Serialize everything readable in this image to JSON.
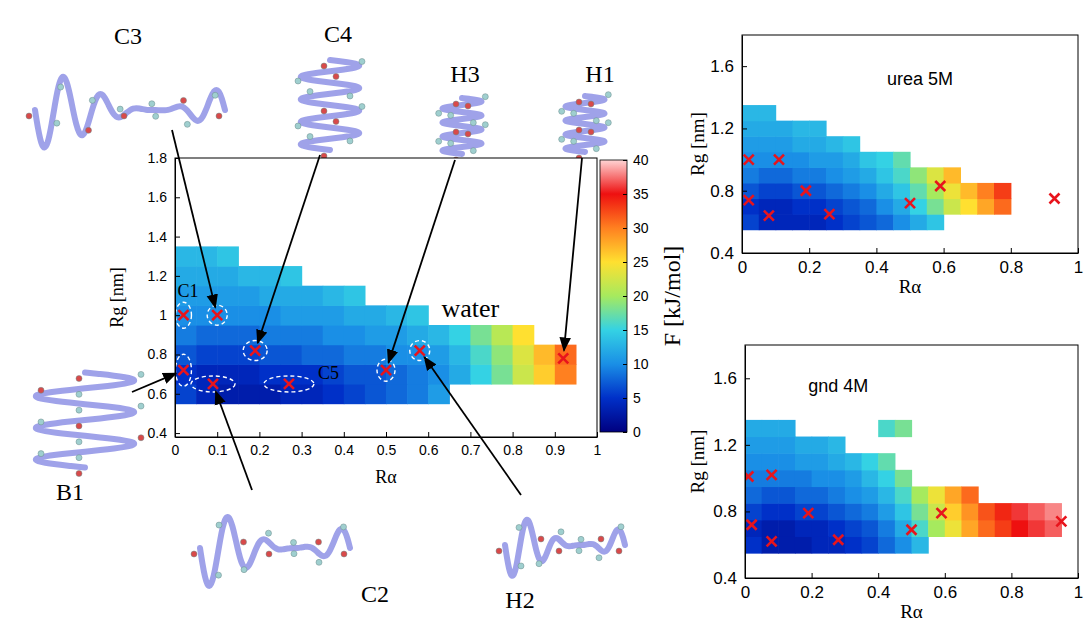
{
  "chart_data": [
    {
      "type": "heatmap",
      "title": "water",
      "x_label": "Rα",
      "y_label": "Rg [nm]",
      "xlim": [
        0,
        1
      ],
      "ylim": [
        0.38,
        1.8
      ],
      "xticks": [
        0,
        0.1,
        0.2,
        0.3,
        0.4,
        0.5,
        0.6,
        0.7,
        0.8,
        0.9,
        1
      ],
      "yticks": [
        0.4,
        0.6,
        0.8,
        1,
        1.2,
        1.4,
        1.6,
        1.8
      ],
      "x_bins": [
        0,
        0.05,
        0.1,
        0.15,
        0.2,
        0.25,
        0.3,
        0.35,
        0.4,
        0.45,
        0.5,
        0.55,
        0.6,
        0.65,
        0.7,
        0.75,
        0.8,
        0.85,
        0.9,
        0.95,
        1
      ],
      "y_bins": [
        0.55,
        0.65,
        0.75,
        0.85,
        0.95,
        1.05,
        1.15,
        1.25,
        1.35
      ],
      "values": [
        [
          6,
          4,
          3,
          3,
          3,
          4,
          4,
          5,
          6,
          7,
          8,
          9,
          11,
          null,
          null,
          null,
          null,
          null,
          null,
          null
        ],
        [
          5,
          4,
          4,
          4,
          5,
          5,
          5,
          6,
          7,
          7,
          8,
          9,
          10,
          12,
          15,
          18,
          22,
          26,
          30,
          null
        ],
        [
          7,
          6,
          6,
          6,
          7,
          7,
          8,
          8,
          9,
          9,
          10,
          10,
          11,
          13,
          16,
          19,
          23,
          27,
          31,
          null
        ],
        [
          9,
          8,
          8,
          8,
          9,
          9,
          9,
          10,
          10,
          11,
          11,
          12,
          13,
          15,
          18,
          21,
          25,
          null,
          null,
          null
        ],
        [
          10,
          10,
          10,
          10,
          10,
          11,
          11,
          11,
          12,
          12,
          13,
          14,
          null,
          null,
          null,
          null,
          null,
          null,
          null,
          null
        ],
        [
          11,
          11,
          11,
          11,
          12,
          12,
          12,
          13,
          14,
          null,
          null,
          null,
          null,
          null,
          null,
          null,
          null,
          null,
          null,
          null
        ],
        [
          12,
          12,
          12,
          13,
          13,
          14,
          null,
          null,
          null,
          null,
          null,
          null,
          null,
          null,
          null,
          null,
          null,
          null,
          null,
          null
        ],
        [
          13,
          13,
          14,
          null,
          null,
          null,
          null,
          null,
          null,
          null,
          null,
          null,
          null,
          null,
          null,
          null,
          null,
          null,
          null,
          null
        ]
      ],
      "colorbar": {
        "label": "F [kJ/mol]",
        "range": [
          0,
          40
        ],
        "ticks": [
          0,
          5,
          10,
          15,
          20,
          25,
          30,
          35,
          40
        ]
      },
      "series": [
        {
          "type": "scatter",
          "marker": "x",
          "color": "#e8141c",
          "x": [
            0.02,
            0.1,
            0.19,
            0.02,
            0.09,
            0.27,
            0.5,
            0.58,
            0.92
          ],
          "y": [
            1.0,
            1.0,
            0.82,
            0.72,
            0.65,
            0.65,
            0.72,
            0.82,
            0.78
          ],
          "labels": [
            "C1",
            "C3",
            "C4",
            "B1",
            "C2",
            "C5",
            "H3",
            "H2",
            "H1"
          ]
        }
      ]
    },
    {
      "type": "heatmap",
      "title": "urea 5M",
      "x_label": "Rα",
      "y_label": "Rg [nm]",
      "xlim": [
        0,
        1
      ],
      "ylim": [
        0.4,
        1.8
      ],
      "xticks": [
        0,
        0.2,
        0.4,
        0.6,
        0.8,
        1
      ],
      "yticks": [
        0.4,
        0.8,
        1.2,
        1.6
      ],
      "x_bins": [
        0,
        0.05,
        0.1,
        0.15,
        0.2,
        0.25,
        0.3,
        0.35,
        0.4,
        0.45,
        0.5,
        0.55,
        0.6,
        0.65,
        0.7,
        0.75,
        0.8,
        0.85,
        0.9,
        0.95,
        1
      ],
      "y_bins": [
        0.55,
        0.65,
        0.75,
        0.85,
        0.95,
        1.05,
        1.15,
        1.25,
        1.35
      ],
      "values": [
        [
          6,
          4,
          4,
          4,
          4,
          5,
          6,
          7,
          8,
          10,
          12,
          14,
          null,
          null,
          null,
          null,
          null,
          null,
          null,
          null
        ],
        [
          5,
          4,
          4,
          5,
          5,
          6,
          7,
          8,
          10,
          12,
          15,
          18,
          22,
          25,
          28,
          31,
          null,
          null,
          null,
          null
        ],
        [
          7,
          6,
          6,
          7,
          7,
          8,
          9,
          10,
          12,
          14,
          17,
          20,
          24,
          27,
          30,
          33,
          null,
          null,
          null,
          null
        ],
        [
          9,
          8,
          8,
          9,
          9,
          10,
          11,
          12,
          14,
          16,
          19,
          23,
          27,
          null,
          null,
          null,
          null,
          null,
          null,
          null
        ],
        [
          10,
          10,
          10,
          10,
          11,
          11,
          12,
          14,
          15,
          17,
          null,
          null,
          null,
          null,
          null,
          null,
          null,
          null,
          null,
          null
        ],
        [
          11,
          11,
          11,
          12,
          12,
          13,
          14,
          null,
          null,
          null,
          null,
          null,
          null,
          null,
          null,
          null,
          null,
          null,
          null,
          null
        ],
        [
          12,
          12,
          12,
          13,
          13,
          null,
          null,
          null,
          null,
          null,
          null,
          null,
          null,
          null,
          null,
          null,
          null,
          null,
          null,
          null
        ],
        [
          13,
          13,
          null,
          null,
          null,
          null,
          null,
          null,
          null,
          null,
          null,
          null,
          null,
          null,
          null,
          null,
          null,
          null,
          null,
          null
        ]
      ],
      "series": [
        {
          "type": "scatter",
          "marker": "x",
          "color": "#e8141c",
          "x": [
            0.02,
            0.11,
            0.02,
            0.08,
            0.19,
            0.26,
            0.5,
            0.59,
            0.93
          ],
          "y": [
            1.0,
            1.0,
            0.74,
            0.64,
            0.8,
            0.65,
            0.72,
            0.83,
            0.75
          ]
        }
      ]
    },
    {
      "type": "heatmap",
      "title": "gnd 4M",
      "x_label": "Rα",
      "y_label": "Rg [nm]",
      "xlim": [
        0,
        1
      ],
      "ylim": [
        0.4,
        1.8
      ],
      "xticks": [
        0,
        0.2,
        0.4,
        0.6,
        0.8,
        1
      ],
      "yticks": [
        0.4,
        0.8,
        1.2,
        1.6
      ],
      "x_bins": [
        0,
        0.05,
        0.1,
        0.15,
        0.2,
        0.25,
        0.3,
        0.35,
        0.4,
        0.45,
        0.5,
        0.55,
        0.6,
        0.65,
        0.7,
        0.75,
        0.8,
        0.85,
        0.9,
        0.95,
        1
      ],
      "y_bins": [
        0.55,
        0.65,
        0.75,
        0.85,
        0.95,
        1.05,
        1.15,
        1.25,
        1.35
      ],
      "values": [
        [
          5,
          3,
          3,
          3,
          4,
          4,
          5,
          6,
          8,
          10,
          13,
          null,
          null,
          null,
          null,
          null,
          null,
          null,
          null,
          null
        ],
        [
          4,
          3,
          3,
          4,
          4,
          5,
          6,
          7,
          9,
          12,
          16,
          20,
          24,
          28,
          31,
          33,
          35,
          36,
          37,
          null
        ],
        [
          6,
          5,
          5,
          6,
          6,
          7,
          8,
          9,
          11,
          14,
          18,
          22,
          26,
          29,
          32,
          34,
          36,
          37,
          38,
          null
        ],
        [
          8,
          7,
          7,
          8,
          8,
          9,
          10,
          11,
          13,
          16,
          20,
          24,
          28,
          31,
          null,
          null,
          null,
          null,
          null,
          null
        ],
        [
          9,
          9,
          9,
          9,
          10,
          10,
          11,
          13,
          15,
          18,
          null,
          null,
          null,
          null,
          null,
          null,
          null,
          null,
          null,
          null
        ],
        [
          10,
          10,
          10,
          11,
          11,
          12,
          13,
          15,
          17,
          null,
          null,
          null,
          null,
          null,
          null,
          null,
          null,
          null,
          null,
          null
        ],
        [
          11,
          11,
          11,
          12,
          12,
          13,
          null,
          null,
          null,
          null,
          null,
          null,
          null,
          null,
          null,
          null,
          null,
          null,
          null,
          null
        ],
        [
          12,
          12,
          12,
          null,
          null,
          null,
          null,
          null,
          16,
          18,
          null,
          null,
          null,
          null,
          null,
          null,
          null,
          null,
          null,
          null
        ]
      ],
      "series": [
        {
          "type": "scatter",
          "marker": "x",
          "color": "#e8141c",
          "x": [
            0.01,
            0.08,
            0.02,
            0.08,
            0.19,
            0.28,
            0.5,
            0.59,
            0.95
          ],
          "y": [
            1.01,
            1.02,
            0.72,
            0.62,
            0.79,
            0.63,
            0.69,
            0.79,
            0.74
          ]
        }
      ]
    }
  ]
}
